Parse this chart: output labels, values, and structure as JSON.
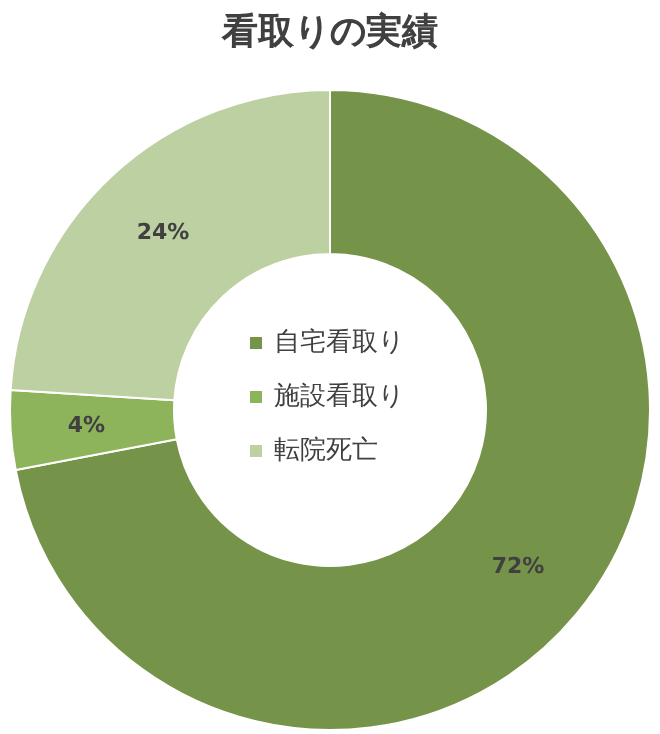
{
  "chart_data": {
    "type": "donut",
    "title": "看取りの実績",
    "categories": [
      "自宅看取り",
      "施設看取り",
      "転院死亡"
    ],
    "values": [
      72,
      4,
      24
    ],
    "colors": [
      "#76934a",
      "#8db35b",
      "#bcd0a2"
    ],
    "value_labels": [
      "72%",
      "4%",
      "24%"
    ],
    "legend": "center"
  }
}
